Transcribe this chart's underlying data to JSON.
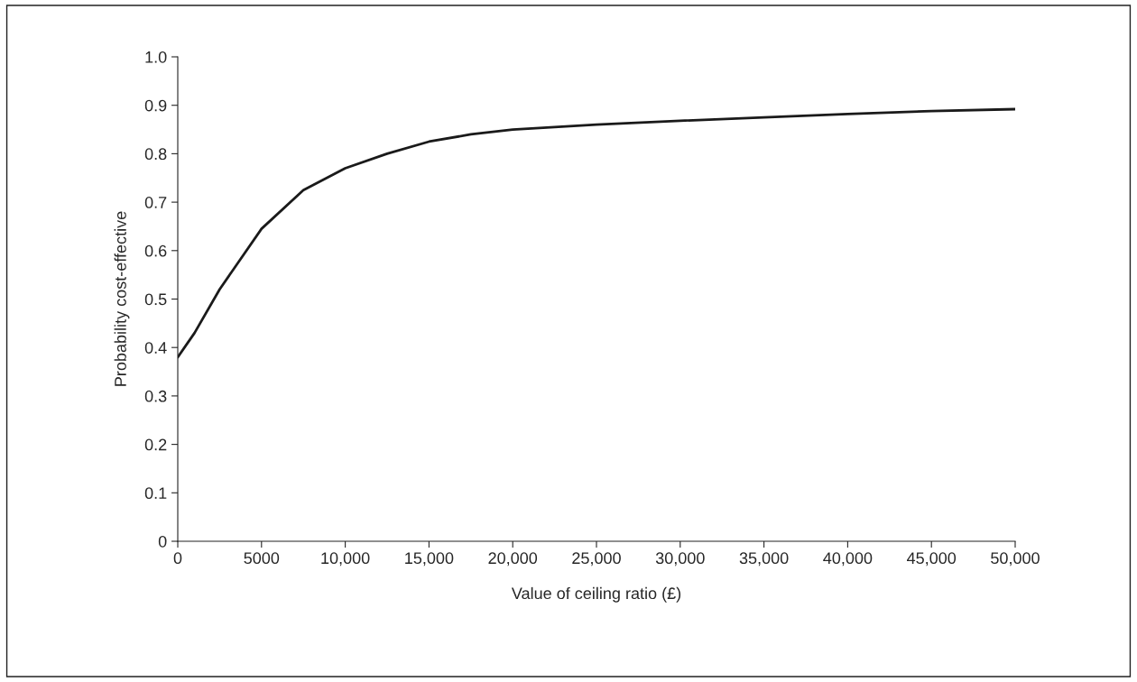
{
  "chart_data": {
    "type": "line",
    "xlabel": "Value of ceiling ratio (£)",
    "ylabel": "Probability cost-effective",
    "x": [
      0,
      1000,
      2500,
      5000,
      7500,
      10000,
      12500,
      15000,
      17500,
      20000,
      25000,
      30000,
      35000,
      40000,
      45000,
      50000
    ],
    "series": [
      {
        "color": "#1a1a1a",
        "values": [
          0.38,
          0.43,
          0.52,
          0.645,
          0.725,
          0.77,
          0.8,
          0.825,
          0.84,
          0.85,
          0.86,
          0.868,
          0.875,
          0.882,
          0.888,
          0.892
        ]
      }
    ],
    "xlim": [
      0,
      50000
    ],
    "xticks": [
      0,
      5000,
      {
        "value": 10000,
        "label": "10,000"
      },
      {
        "value": 15000,
        "label": "15,000"
      },
      {
        "value": 20000,
        "label": "20,000"
      },
      {
        "value": 25000,
        "label": "25,000"
      },
      {
        "value": 30000,
        "label": "30,000"
      },
      {
        "value": 35000,
        "label": "35,000"
      },
      {
        "value": 40000,
        "label": "40,000"
      },
      {
        "value": 45000,
        "label": "45,000"
      },
      {
        "value": 50000,
        "label": "50,000"
      }
    ],
    "ylim": [
      0,
      1.0
    ],
    "yticks": [
      0,
      0.1,
      0.2,
      0.3,
      0.4,
      0.5,
      0.6,
      0.7,
      0.8,
      0.9,
      {
        "value": 1.0,
        "label": "1.0"
      }
    ],
    "grid": false,
    "legend": false,
    "marker": "none",
    "line_style": "solid"
  }
}
